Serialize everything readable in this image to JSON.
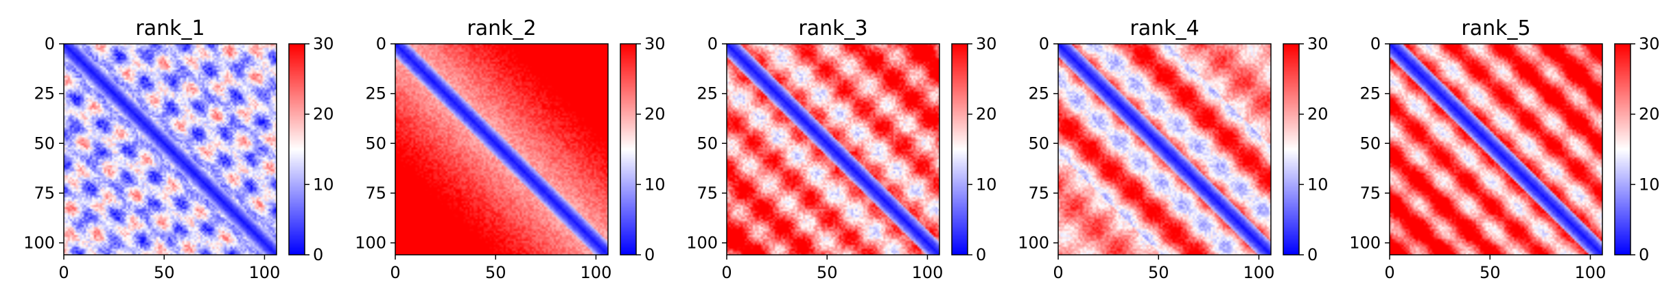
{
  "chart_data": [
    {
      "type": "heatmap",
      "title": "rank_1",
      "pattern": 1,
      "xlim": [
        0,
        106
      ],
      "ylim": [
        106,
        0
      ],
      "xticks": [
        0,
        50,
        100
      ],
      "yticks": [
        0,
        25,
        50,
        75,
        100
      ],
      "colorbar": {
        "range": [
          0,
          30
        ],
        "ticks": [
          0,
          10,
          20,
          30
        ],
        "colormap": "bwr"
      }
    },
    {
      "type": "heatmap",
      "title": "rank_2",
      "pattern": 2,
      "xlim": [
        0,
        106
      ],
      "ylim": [
        106,
        0
      ],
      "xticks": [
        0,
        50,
        100
      ],
      "yticks": [
        0,
        25,
        50,
        75,
        100
      ],
      "colorbar": {
        "range": [
          0,
          30
        ],
        "ticks": [
          0,
          10,
          20,
          30
        ],
        "colormap": "bwr"
      }
    },
    {
      "type": "heatmap",
      "title": "rank_3",
      "pattern": 3,
      "xlim": [
        0,
        106
      ],
      "ylim": [
        106,
        0
      ],
      "xticks": [
        0,
        50,
        100
      ],
      "yticks": [
        0,
        25,
        50,
        75,
        100
      ],
      "colorbar": {
        "range": [
          0,
          30
        ],
        "ticks": [
          0,
          10,
          20,
          30
        ],
        "colormap": "bwr"
      }
    },
    {
      "type": "heatmap",
      "title": "rank_4",
      "pattern": 4,
      "xlim": [
        0,
        106
      ],
      "ylim": [
        106,
        0
      ],
      "xticks": [
        0,
        50,
        100
      ],
      "yticks": [
        0,
        25,
        50,
        75,
        100
      ],
      "colorbar": {
        "range": [
          0,
          30
        ],
        "ticks": [
          0,
          10,
          20,
          30
        ],
        "colormap": "bwr"
      }
    },
    {
      "type": "heatmap",
      "title": "rank_5",
      "pattern": 5,
      "xlim": [
        0,
        106
      ],
      "ylim": [
        106,
        0
      ],
      "xticks": [
        0,
        50,
        100
      ],
      "yticks": [
        0,
        25,
        50,
        75,
        100
      ],
      "colorbar": {
        "range": [
          0,
          30
        ],
        "ticks": [
          0,
          10,
          20,
          30
        ],
        "colormap": "bwr"
      }
    }
  ]
}
